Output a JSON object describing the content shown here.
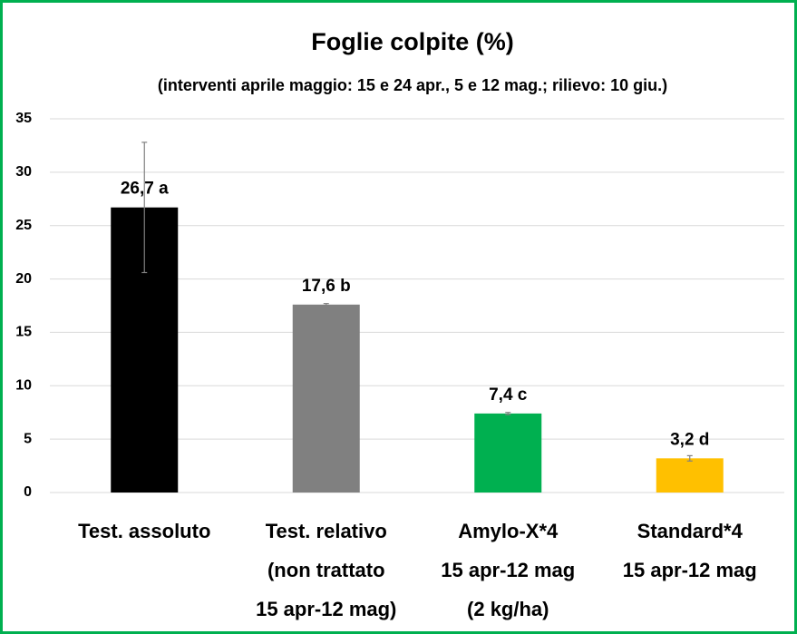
{
  "chart_data": {
    "type": "bar",
    "title": "Foglie colpite (%)",
    "subtitle": "(interventi aprile maggio: 15 e 24 apr., 5 e 12 mag.; rilievo: 10 giu.)",
    "categories": [
      [
        "Test. assoluto"
      ],
      [
        "Test. relativo",
        "(non trattato",
        "15 apr-12 mag)"
      ],
      [
        "Amylo-X*4",
        "15 apr-12 mag",
        "(2 kg/ha)"
      ],
      [
        "Standard*4",
        "15 apr-12 mag"
      ]
    ],
    "values": [
      26.7,
      17.6,
      7.4,
      3.2
    ],
    "value_labels": [
      "26,7 a",
      "17,6 b",
      "7,4 c",
      "3,2 d"
    ],
    "errors": [
      6.1,
      0.1,
      0.1,
      0.25
    ],
    "colors": [
      "#000000",
      "#808080",
      "#00b050",
      "#ffc000"
    ],
    "ylim": [
      0,
      35
    ],
    "yticks": [
      0,
      5,
      10,
      15,
      20,
      25,
      30,
      35
    ],
    "grid": true
  }
}
